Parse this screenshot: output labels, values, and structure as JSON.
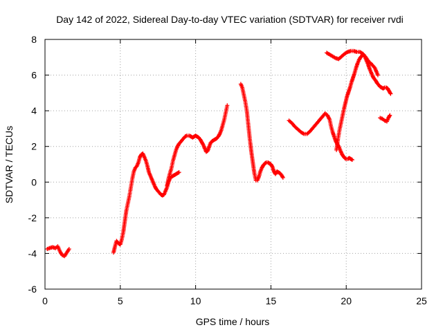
{
  "chart_data": {
    "type": "scatter",
    "title": "Day 142 of 2022, Sidereal Day-to-day VTEC variation (SDTVAR) for receiver rvdi",
    "xlabel": "GPS time / hours",
    "ylabel": "SDTVAR / TECUs",
    "xlim": [
      0,
      25
    ],
    "ylim": [
      -6,
      8
    ],
    "x_ticks": [
      0,
      5,
      10,
      15,
      20,
      25
    ],
    "y_ticks": [
      -6,
      -4,
      -2,
      0,
      2,
      4,
      6,
      8
    ],
    "x_tick_labels": [
      "0",
      "5",
      "10",
      "15",
      "20",
      "25"
    ],
    "y_tick_labels": [
      "-6",
      "-4",
      "-2",
      "0",
      "2",
      "4",
      "6",
      "8"
    ],
    "grid": true,
    "marker": "+",
    "color": "#ff0000",
    "series": [
      {
        "segments": [
          [
            [
              0.15,
              -3.75
            ],
            [
              0.3,
              -3.7
            ],
            [
              0.5,
              -3.65
            ],
            [
              0.7,
              -3.7
            ],
            [
              0.85,
              -3.6
            ],
            [
              1.0,
              -3.9
            ],
            [
              1.15,
              -4.1
            ],
            [
              1.3,
              -4.15
            ],
            [
              1.45,
              -3.95
            ],
            [
              1.6,
              -3.75
            ]
          ],
          [
            [
              4.55,
              -3.95
            ],
            [
              4.65,
              -3.6
            ],
            [
              4.75,
              -3.3
            ],
            [
              4.9,
              -3.45
            ],
            [
              5.0,
              -3.5
            ],
            [
              5.1,
              -3.2
            ],
            [
              5.2,
              -2.8
            ],
            [
              5.3,
              -2.2
            ],
            [
              5.4,
              -1.6
            ],
            [
              5.5,
              -1.2
            ],
            [
              5.6,
              -0.8
            ],
            [
              5.7,
              -0.3
            ],
            [
              5.8,
              0.2
            ],
            [
              5.9,
              0.6
            ],
            [
              6.0,
              0.8
            ],
            [
              6.1,
              0.9
            ],
            [
              6.2,
              1.1
            ],
            [
              6.3,
              1.4
            ],
            [
              6.4,
              1.55
            ],
            [
              6.5,
              1.6
            ],
            [
              6.6,
              1.4
            ],
            [
              6.7,
              1.2
            ],
            [
              6.8,
              0.9
            ],
            [
              6.9,
              0.55
            ],
            [
              7.0,
              0.35
            ],
            [
              7.1,
              0.15
            ],
            [
              7.2,
              -0.05
            ],
            [
              7.3,
              -0.25
            ],
            [
              7.4,
              -0.4
            ],
            [
              7.5,
              -0.5
            ],
            [
              7.6,
              -0.6
            ],
            [
              7.7,
              -0.7
            ],
            [
              7.8,
              -0.75
            ],
            [
              7.9,
              -0.7
            ],
            [
              8.0,
              -0.5
            ],
            [
              8.1,
              -0.3
            ],
            [
              8.2,
              0.0
            ],
            [
              8.3,
              0.2
            ],
            [
              8.4,
              0.3
            ],
            [
              8.5,
              0.35
            ],
            [
              8.6,
              0.4
            ],
            [
              8.7,
              0.45
            ],
            [
              8.8,
              0.5
            ],
            [
              8.9,
              0.55
            ]
          ],
          [
            [
              8.1,
              -0.2
            ],
            [
              8.2,
              0.2
            ],
            [
              8.3,
              0.5
            ],
            [
              8.4,
              0.8
            ],
            [
              8.5,
              1.2
            ],
            [
              8.6,
              1.5
            ],
            [
              8.7,
              1.8
            ],
            [
              8.8,
              2.0
            ],
            [
              8.9,
              2.15
            ],
            [
              9.0,
              2.25
            ],
            [
              9.1,
              2.35
            ],
            [
              9.2,
              2.45
            ],
            [
              9.3,
              2.55
            ],
            [
              9.4,
              2.6
            ],
            [
              9.5,
              2.6
            ],
            [
              9.6,
              2.6
            ],
            [
              9.7,
              2.55
            ],
            [
              9.8,
              2.5
            ],
            [
              9.9,
              2.55
            ],
            [
              10.0,
              2.6
            ],
            [
              10.1,
              2.55
            ],
            [
              10.2,
              2.5
            ],
            [
              10.3,
              2.4
            ],
            [
              10.4,
              2.25
            ],
            [
              10.5,
              2.1
            ],
            [
              10.6,
              1.9
            ],
            [
              10.7,
              1.7
            ],
            [
              10.8,
              1.75
            ],
            [
              10.9,
              2.0
            ],
            [
              11.0,
              2.2
            ],
            [
              11.1,
              2.3
            ],
            [
              11.2,
              2.35
            ],
            [
              11.3,
              2.4
            ],
            [
              11.4,
              2.45
            ],
            [
              11.5,
              2.55
            ],
            [
              11.6,
              2.7
            ],
            [
              11.7,
              2.9
            ],
            [
              11.8,
              3.2
            ],
            [
              11.9,
              3.5
            ],
            [
              12.0,
              3.9
            ],
            [
              12.1,
              4.3
            ]
          ],
          [
            [
              13.0,
              5.5
            ],
            [
              13.1,
              5.3
            ],
            [
              13.2,
              4.9
            ],
            [
              13.3,
              4.5
            ],
            [
              13.4,
              4.0
            ],
            [
              13.5,
              3.2
            ],
            [
              13.6,
              2.4
            ],
            [
              13.7,
              1.7
            ],
            [
              13.8,
              1.1
            ],
            [
              13.9,
              0.5
            ],
            [
              14.0,
              0.1
            ],
            [
              14.1,
              0.1
            ],
            [
              14.2,
              0.3
            ],
            [
              14.3,
              0.6
            ],
            [
              14.4,
              0.8
            ],
            [
              14.5,
              0.95
            ],
            [
              14.6,
              1.05
            ],
            [
              14.7,
              1.1
            ],
            [
              14.8,
              1.1
            ],
            [
              14.9,
              1.05
            ],
            [
              15.0,
              1.0
            ],
            [
              15.1,
              0.85
            ],
            [
              15.2,
              0.6
            ],
            [
              15.3,
              0.45
            ],
            [
              15.4,
              0.6
            ],
            [
              15.5,
              0.55
            ],
            [
              15.6,
              0.5
            ],
            [
              15.7,
              0.4
            ],
            [
              15.8,
              0.25
            ]
          ],
          [
            [
              16.2,
              3.45
            ],
            [
              16.4,
              3.3
            ],
            [
              16.6,
              3.1
            ],
            [
              16.8,
              2.95
            ],
            [
              17.0,
              2.8
            ],
            [
              17.2,
              2.7
            ],
            [
              17.4,
              2.7
            ],
            [
              17.6,
              2.85
            ],
            [
              17.8,
              3.05
            ],
            [
              18.0,
              3.25
            ],
            [
              18.2,
              3.45
            ],
            [
              18.4,
              3.65
            ],
            [
              18.6,
              3.85
            ],
            [
              18.75,
              3.75
            ],
            [
              18.9,
              3.5
            ],
            [
              19.0,
              3.1
            ],
            [
              19.1,
              2.8
            ],
            [
              19.2,
              2.55
            ],
            [
              19.3,
              2.3
            ],
            [
              19.4,
              2.15
            ],
            [
              19.5,
              2.0
            ],
            [
              19.6,
              1.8
            ],
            [
              19.7,
              1.6
            ],
            [
              19.8,
              1.45
            ],
            [
              19.9,
              1.35
            ],
            [
              20.0,
              1.3
            ],
            [
              20.1,
              1.3
            ],
            [
              20.2,
              1.35
            ],
            [
              20.3,
              1.3
            ],
            [
              20.4,
              1.25
            ]
          ],
          [
            [
              19.35,
              1.8
            ],
            [
              19.45,
              2.4
            ],
            [
              19.55,
              2.9
            ],
            [
              19.65,
              3.3
            ],
            [
              19.75,
              3.7
            ],
            [
              19.85,
              4.1
            ],
            [
              19.95,
              4.45
            ],
            [
              20.05,
              4.8
            ],
            [
              20.15,
              5.05
            ],
            [
              20.25,
              5.3
            ],
            [
              20.35,
              5.6
            ],
            [
              20.45,
              5.85
            ],
            [
              20.55,
              6.1
            ],
            [
              20.65,
              6.4
            ],
            [
              20.75,
              6.65
            ],
            [
              20.85,
              6.85
            ],
            [
              20.95,
              7.0
            ],
            [
              21.05,
              7.1
            ],
            [
              21.15,
              7.15
            ],
            [
              21.25,
              7.0
            ],
            [
              21.35,
              6.8
            ],
            [
              21.45,
              6.6
            ],
            [
              21.55,
              6.35
            ],
            [
              21.65,
              6.15
            ],
            [
              21.75,
              5.95
            ],
            [
              21.85,
              5.8
            ],
            [
              21.95,
              5.7
            ],
            [
              22.05,
              5.55
            ],
            [
              22.15,
              5.45
            ],
            [
              22.25,
              5.35
            ],
            [
              22.35,
              5.3
            ],
            [
              22.45,
              5.25
            ],
            [
              22.55,
              5.3
            ],
            [
              22.65,
              5.3
            ],
            [
              22.75,
              5.25
            ],
            [
              22.85,
              5.1
            ],
            [
              22.95,
              4.95
            ]
          ],
          [
            [
              18.7,
              7.25
            ],
            [
              18.9,
              7.15
            ],
            [
              19.1,
              7.05
            ],
            [
              19.3,
              6.95
            ],
            [
              19.5,
              6.9
            ],
            [
              19.7,
              7.05
            ],
            [
              19.9,
              7.2
            ],
            [
              20.1,
              7.3
            ],
            [
              20.3,
              7.35
            ],
            [
              20.5,
              7.35
            ],
            [
              20.7,
              7.3
            ],
            [
              20.9,
              7.3
            ],
            [
              21.1,
              7.2
            ],
            [
              21.3,
              7.0
            ],
            [
              21.5,
              6.75
            ],
            [
              21.7,
              6.6
            ],
            [
              21.9,
              6.4
            ],
            [
              22.1,
              6.0
            ]
          ],
          [
            [
              22.25,
              3.6
            ],
            [
              22.4,
              3.55
            ],
            [
              22.55,
              3.45
            ],
            [
              22.7,
              3.4
            ],
            [
              22.8,
              3.6
            ],
            [
              22.9,
              3.75
            ]
          ]
        ]
      }
    ]
  }
}
